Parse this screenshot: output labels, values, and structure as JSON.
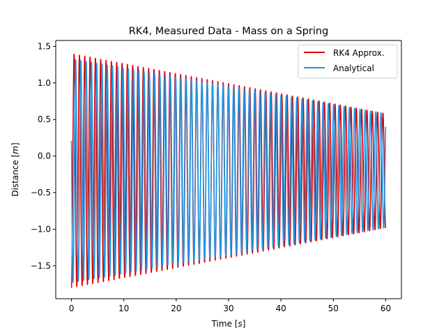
{
  "chart_data": {
    "type": "line",
    "title": "RK4, Measured Data - Mass on a Spring",
    "xlabel": "Time [",
    "xlabel_unit": "s",
    "xlabel_close": "]",
    "ylabel": "Distance [",
    "ylabel_unit": "m",
    "ylabel_close": "]",
    "xlim": [
      -3.0,
      63.0
    ],
    "ylim": [
      -1.95,
      1.58
    ],
    "xticks": [
      0,
      10,
      20,
      30,
      40,
      50,
      60
    ],
    "xtick_labels": [
      "0",
      "10",
      "20",
      "30",
      "40",
      "50",
      "60"
    ],
    "yticks": [
      -1.5,
      -1.0,
      -0.5,
      0.0,
      0.5,
      1.0,
      1.5
    ],
    "ytick_labels": [
      "−1.5",
      "−1.0",
      "−0.5",
      "0.0",
      "0.5",
      "1.0",
      "1.5"
    ],
    "grid": false,
    "legend_position": "top-right",
    "series": [
      {
        "name": "RK4 Approx.",
        "color": "#dd0000",
        "model": {
          "t_start": 0,
          "t_end": 60,
          "offset": -0.2,
          "amplitude_start": 1.6,
          "amplitude_end": 0.78,
          "angular_frequency": 6.18,
          "phase": 3.1416
        }
      },
      {
        "name": "Analytical",
        "color": "#1a96e6",
        "model": {
          "t_start": 0,
          "t_end": 60,
          "offset": -0.2,
          "amplitude_start": 1.53,
          "amplitude_end": 0.78,
          "angular_frequency": 6.25,
          "phase": 1.3
        }
      }
    ]
  }
}
